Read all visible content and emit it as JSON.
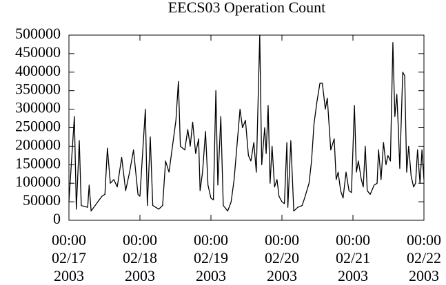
{
  "chart_data": {
    "type": "line",
    "title": "EECS03 Operation Count",
    "color": "#000000",
    "x": [
      "2003-02-17T00:00",
      "2003-02-17T01:50",
      "2003-02-17T02:30",
      "2003-02-17T03:30",
      "2003-02-17T04:10",
      "2003-02-17T06:20",
      "2003-02-17T06:50",
      "2003-02-17T07:30",
      "2003-02-17T09:20",
      "2003-02-17T11:10",
      "2003-02-17T12:10",
      "2003-02-17T13:00",
      "2003-02-17T14:00",
      "2003-02-17T15:10",
      "2003-02-17T16:20",
      "2003-02-17T17:50",
      "2003-02-17T19:10",
      "2003-02-17T20:30",
      "2003-02-17T21:50",
      "2003-02-17T23:20",
      "2003-02-18T00:00",
      "2003-02-18T01:50",
      "2003-02-18T02:30",
      "2003-02-18T03:30",
      "2003-02-18T04:20",
      "2003-02-18T06:20",
      "2003-02-18T07:40",
      "2003-02-18T08:40",
      "2003-02-18T09:50",
      "2003-02-18T11:00",
      "2003-02-18T12:10",
      "2003-02-18T13:00",
      "2003-02-18T13:40",
      "2003-02-18T15:10",
      "2003-02-18T16:10",
      "2003-02-18T17:00",
      "2003-02-18T17:50",
      "2003-02-18T18:50",
      "2003-02-18T19:50",
      "2003-02-18T20:20",
      "2003-02-18T21:10",
      "2003-02-18T22:10",
      "2003-02-18T23:00",
      "2003-02-19T00:00",
      "2003-02-19T00:50",
      "2003-02-19T01:40",
      "2003-02-19T02:20",
      "2003-02-19T03:20",
      "2003-02-19T04:10",
      "2003-02-19T05:40",
      "2003-02-19T06:50",
      "2003-02-19T07:50",
      "2003-02-19T09:50",
      "2003-02-19T10:40",
      "2003-02-19T11:40",
      "2003-02-19T12:40",
      "2003-02-19T13:30",
      "2003-02-19T14:30",
      "2003-02-19T15:20",
      "2003-02-19T16:30",
      "2003-02-19T17:10",
      "2003-02-19T18:10",
      "2003-02-19T18:40",
      "2003-02-19T19:20",
      "2003-02-19T20:00",
      "2003-02-19T20:40",
      "2003-02-19T21:30",
      "2003-02-19T22:20",
      "2003-02-19T23:00",
      "2003-02-20T00:00",
      "2003-02-20T00:50",
      "2003-02-20T01:40",
      "2003-02-20T02:00",
      "2003-02-20T03:00",
      "2003-02-20T04:00",
      "2003-02-20T05:20",
      "2003-02-20T06:50",
      "2003-02-20T07:40",
      "2003-02-20T09:10",
      "2003-02-20T10:00",
      "2003-02-20T10:50",
      "2003-02-20T11:50",
      "2003-02-20T12:50",
      "2003-02-20T13:40",
      "2003-02-20T14:40",
      "2003-02-20T15:20",
      "2003-02-20T16:30",
      "2003-02-20T17:40",
      "2003-02-20T18:20",
      "2003-02-20T19:00",
      "2003-02-20T19:50",
      "2003-02-20T20:40",
      "2003-02-20T21:40",
      "2003-02-20T22:40",
      "2003-02-20T23:30",
      "2003-02-21T00:30",
      "2003-02-21T01:10",
      "2003-02-21T01:50",
      "2003-02-21T02:50",
      "2003-02-21T03:30",
      "2003-02-21T04:10",
      "2003-02-21T04:50",
      "2003-02-21T05:50",
      "2003-02-21T07:10",
      "2003-02-21T08:10",
      "2003-02-21T08:40",
      "2003-02-21T09:30",
      "2003-02-21T10:20",
      "2003-02-21T11:10",
      "2003-02-21T11:50",
      "2003-02-21T12:40",
      "2003-02-21T13:30",
      "2003-02-21T14:10",
      "2003-02-21T14:50",
      "2003-02-21T15:20",
      "2003-02-21T15:50",
      "2003-02-21T16:50",
      "2003-02-21T17:30",
      "2003-02-21T18:10",
      "2003-02-21T18:50",
      "2003-02-21T19:40",
      "2003-02-21T20:30",
      "2003-02-21T21:10",
      "2003-02-21T21:50",
      "2003-02-21T22:40",
      "2003-02-21T23:20",
      "2003-02-22T00:00"
    ],
    "values": [
      50000,
      280000,
      30000,
      215000,
      40000,
      35000,
      95000,
      25000,
      45000,
      65000,
      70000,
      195000,
      100000,
      110000,
      90000,
      170000,
      80000,
      130000,
      190000,
      70000,
      65000,
      300000,
      40000,
      225000,
      40000,
      30000,
      40000,
      160000,
      130000,
      200000,
      270000,
      375000,
      200000,
      190000,
      245000,
      200000,
      265000,
      180000,
      220000,
      80000,
      130000,
      240000,
      95000,
      60000,
      55000,
      350000,
      95000,
      280000,
      40000,
      25000,
      50000,
      110000,
      300000,
      250000,
      270000,
      175000,
      160000,
      210000,
      130000,
      500000,
      150000,
      250000,
      180000,
      310000,
      100000,
      200000,
      90000,
      110000,
      65000,
      50000,
      45000,
      210000,
      35000,
      215000,
      25000,
      35000,
      40000,
      60000,
      100000,
      160000,
      260000,
      320000,
      370000,
      370000,
      300000,
      330000,
      190000,
      220000,
      110000,
      130000,
      80000,
      60000,
      130000,
      80000,
      75000,
      310000,
      130000,
      160000,
      110000,
      90000,
      200000,
      80000,
      70000,
      95000,
      100000,
      190000,
      110000,
      210000,
      150000,
      175000,
      160000,
      480000,
      280000,
      340000,
      250000,
      140000,
      400000,
      390000,
      130000,
      200000,
      120000,
      90000,
      100000,
      190000,
      100000,
      190000,
      110000
    ],
    "xlim": [
      "2003-02-17T00:00",
      "2003-02-22T00:00"
    ],
    "xticks": [
      {
        "value": "2003-02-17T00:00",
        "label": "00:00\n02/17\n2003"
      },
      {
        "value": "2003-02-18T00:00",
        "label": "00:00\n02/18\n2003"
      },
      {
        "value": "2003-02-19T00:00",
        "label": "00:00\n02/19\n2003"
      },
      {
        "value": "2003-02-20T00:00",
        "label": "00:00\n02/20\n2003"
      },
      {
        "value": "2003-02-21T00:00",
        "label": "00:00\n02/21\n2003"
      },
      {
        "value": "2003-02-22T00:00",
        "label": "00:00\n02/22\n2003"
      }
    ],
    "ylim": [
      0,
      500000
    ],
    "yticks": [
      0,
      50000,
      100000,
      150000,
      200000,
      250000,
      300000,
      350000,
      400000,
      450000,
      500000
    ]
  }
}
